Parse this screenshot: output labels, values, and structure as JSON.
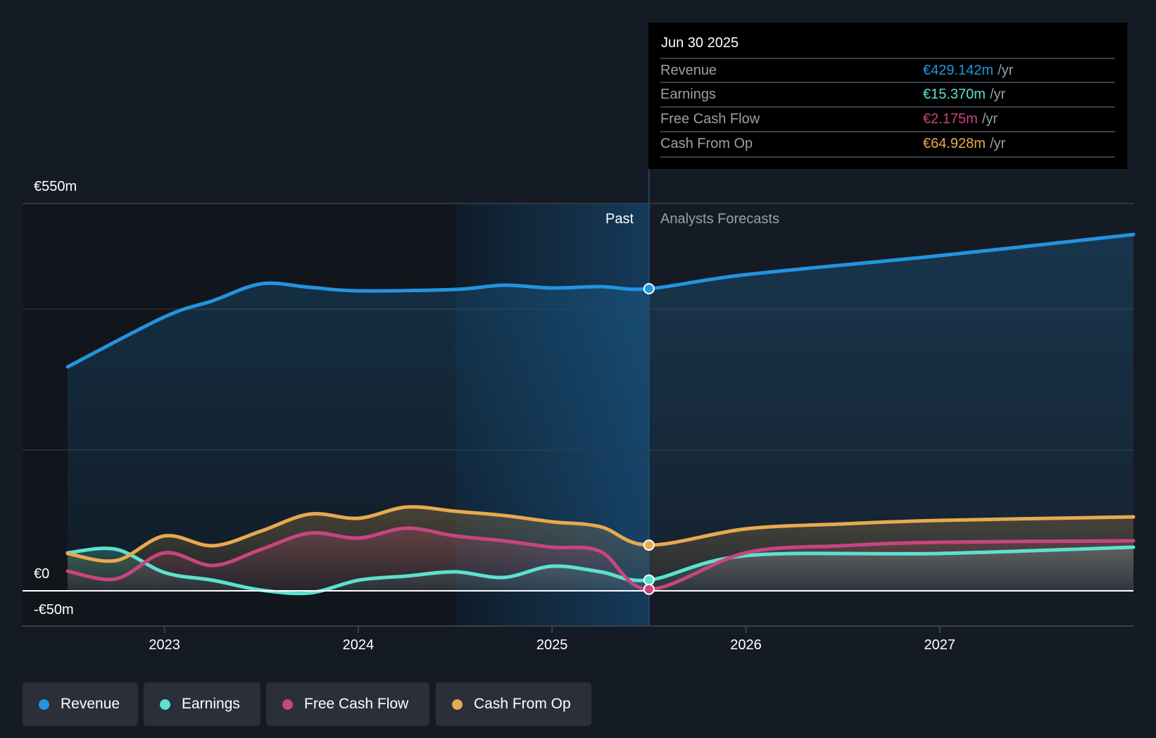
{
  "chart_data": {
    "type": "line",
    "title": "",
    "xlabel": "",
    "ylabel": "",
    "x_ticks": [
      "2023",
      "2024",
      "2025",
      "2026",
      "2027"
    ],
    "y_ticks": [
      "€550m",
      "€0",
      "-€50m"
    ],
    "xlim": [
      2022.5,
      2028.0
    ],
    "ylim": [
      -50,
      550
    ],
    "grid": true,
    "legend_position": "bottom-left",
    "regions": {
      "past_label": "Past",
      "forecast_label": "Analysts Forecasts",
      "divider_x": 2025.5
    },
    "series": [
      {
        "name": "Revenue",
        "color": "#2394df",
        "x": [
          2022.5,
          2023,
          2023.25,
          2023.5,
          2023.75,
          2024,
          2024.5,
          2024.75,
          2025,
          2025.25,
          2025.5,
          2026,
          2027,
          2028
        ],
        "y": [
          318,
          389,
          412,
          436,
          431,
          426,
          428,
          434,
          430,
          432,
          429,
          449,
          476,
          506
        ]
      },
      {
        "name": "Earnings",
        "color": "#5ce1d0",
        "x": [
          2022.5,
          2022.75,
          2023,
          2023.25,
          2023.5,
          2023.75,
          2024,
          2024.25,
          2024.5,
          2024.75,
          2025,
          2025.25,
          2025.5,
          2026,
          2027,
          2028
        ],
        "y": [
          54,
          59,
          26,
          15,
          1,
          -3,
          15,
          21,
          27,
          19,
          35,
          27,
          15.37,
          50,
          53,
          62
        ]
      },
      {
        "name": "Free Cash Flow",
        "color": "#c8457f",
        "x": [
          2022.5,
          2022.75,
          2023,
          2023.25,
          2023.5,
          2023.75,
          2024,
          2024.25,
          2024.5,
          2024.75,
          2025,
          2025.25,
          2025.5,
          2026,
          2026.5,
          2027,
          2028
        ],
        "y": [
          28,
          17,
          54,
          36,
          59,
          82,
          75,
          89,
          78,
          71,
          62,
          56,
          2.175,
          54,
          64,
          69,
          71
        ]
      },
      {
        "name": "Cash From Op",
        "color": "#e8a94f",
        "x": [
          2022.5,
          2022.75,
          2023,
          2023.25,
          2023.5,
          2023.75,
          2024,
          2024.25,
          2024.5,
          2024.75,
          2025,
          2025.25,
          2025.5,
          2026,
          2026.5,
          2027,
          2028
        ],
        "y": [
          53,
          43,
          78,
          64,
          85,
          109,
          103,
          119,
          113,
          107,
          98,
          91,
          64.928,
          88,
          95,
          100,
          105
        ]
      }
    ]
  },
  "tooltip": {
    "date": "Jun 30 2025",
    "unit": "/yr",
    "rows": [
      {
        "label": "Revenue",
        "value": "€429.142m"
      },
      {
        "label": "Earnings",
        "value": "€15.370m"
      },
      {
        "label": "Free Cash Flow",
        "value": "€2.175m"
      },
      {
        "label": "Cash From Op",
        "value": "€64.928m"
      }
    ]
  },
  "legend": [
    "Revenue",
    "Earnings",
    "Free Cash Flow",
    "Cash From Op"
  ]
}
